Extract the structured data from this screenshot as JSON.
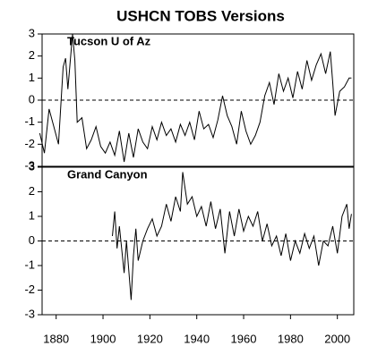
{
  "chart_data": [
    {
      "type": "line",
      "title": "USHCN TOBS Versions",
      "annotation": "Tucson U of Az",
      "color": "#000000",
      "reference_line": 0,
      "x": [
        1873,
        1875,
        1877,
        1879,
        1881,
        1883,
        1884,
        1885,
        1887,
        1888,
        1889,
        1891,
        1893,
        1895,
        1897,
        1899,
        1901,
        1903,
        1905,
        1907,
        1909,
        1911,
        1913,
        1915,
        1917,
        1919,
        1921,
        1923,
        1925,
        1927,
        1929,
        1931,
        1933,
        1935,
        1937,
        1939,
        1941,
        1943,
        1945,
        1947,
        1949,
        1951,
        1953,
        1955,
        1957,
        1959,
        1961,
        1963,
        1965,
        1967,
        1969,
        1971,
        1973,
        1975,
        1977,
        1979,
        1981,
        1983,
        1985,
        1987,
        1989,
        1991,
        1993,
        1995,
        1997,
        1998,
        1999,
        2001,
        2003,
        2005,
        2006
      ],
      "values": [
        -1.5,
        -2.4,
        -0.4,
        -1.2,
        -2.0,
        1.5,
        1.9,
        0.5,
        3.0,
        1.8,
        -1.0,
        -0.8,
        -2.2,
        -1.8,
        -1.2,
        -2.1,
        -2.4,
        -1.9,
        -2.5,
        -1.4,
        -2.8,
        -1.5,
        -2.6,
        -1.3,
        -1.9,
        -2.2,
        -1.2,
        -1.8,
        -1.0,
        -1.6,
        -1.3,
        -1.9,
        -1.1,
        -1.6,
        -1.0,
        -1.8,
        -0.5,
        -1.3,
        -1.1,
        -1.7,
        -0.9,
        0.2,
        -0.7,
        -1.2,
        -2.0,
        -0.5,
        -1.4,
        -2.0,
        -1.6,
        -1.0,
        0.2,
        0.8,
        -0.2,
        1.2,
        0.4,
        1.0,
        0.1,
        1.3,
        0.5,
        1.8,
        0.9,
        1.6,
        2.1,
        1.2,
        2.2,
        0.8,
        -0.7,
        0.4,
        0.6,
        1.0,
        1.0
      ],
      "xlim": [
        1874,
        2007
      ],
      "ylim": [
        -3,
        3
      ],
      "yticks": [
        -3,
        -2,
        -1,
        0,
        1,
        2,
        3
      ]
    },
    {
      "type": "line",
      "annotation": "Grand Canyon",
      "color": "#000000",
      "reference_line": 0,
      "x": [
        1904,
        1905,
        1906,
        1907,
        1909,
        1910,
        1912,
        1913,
        1914,
        1915,
        1917,
        1919,
        1921,
        1923,
        1925,
        1927,
        1929,
        1931,
        1933,
        1934,
        1936,
        1938,
        1940,
        1942,
        1944,
        1946,
        1948,
        1950,
        1952,
        1954,
        1956,
        1958,
        1960,
        1962,
        1964,
        1966,
        1968,
        1970,
        1972,
        1974,
        1976,
        1978,
        1980,
        1982,
        1984,
        1986,
        1988,
        1990,
        1992,
        1994,
        1996,
        1998,
        2000,
        2002,
        2004,
        2005,
        2006
      ],
      "values": [
        0.2,
        1.2,
        -0.3,
        0.6,
        -1.3,
        0.0,
        -2.4,
        -0.6,
        0.5,
        -0.8,
        0.0,
        0.5,
        0.9,
        0.2,
        0.6,
        1.5,
        0.8,
        1.8,
        1.2,
        2.8,
        1.5,
        1.8,
        1.0,
        1.4,
        0.6,
        1.6,
        0.5,
        1.3,
        -0.5,
        1.2,
        0.2,
        1.3,
        0.4,
        1.0,
        0.6,
        1.2,
        0.0,
        0.7,
        -0.2,
        0.2,
        -0.6,
        0.3,
        -0.8,
        0.0,
        -0.5,
        0.3,
        -0.3,
        0.2,
        -1.0,
        0.0,
        -0.2,
        0.6,
        -0.5,
        1.0,
        1.5,
        0.5,
        1.1
      ],
      "xlim": [
        1874,
        2007
      ],
      "ylim": [
        -3,
        3
      ],
      "yticks": [
        -3,
        -2,
        -1,
        0,
        1,
        2,
        3
      ],
      "xticks": [
        1880,
        1900,
        1920,
        1940,
        1960,
        1980,
        2000
      ]
    }
  ]
}
